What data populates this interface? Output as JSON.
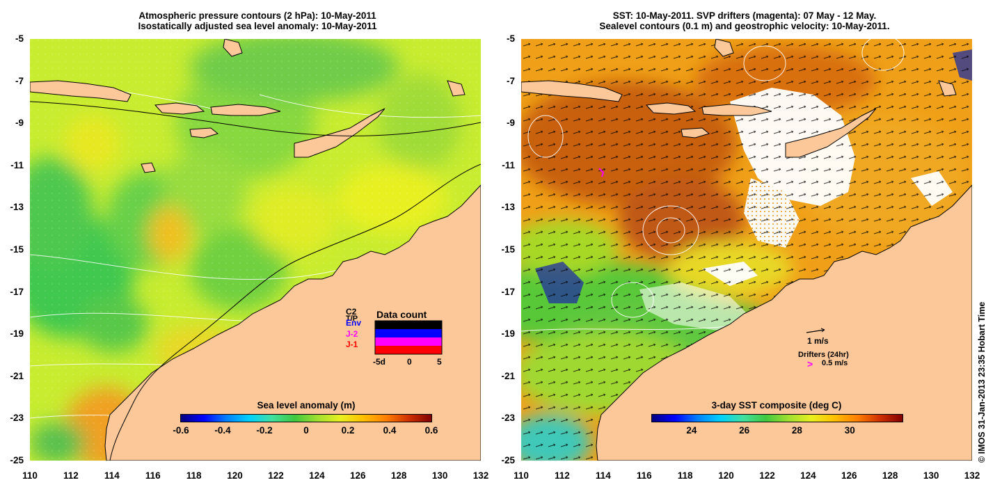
{
  "left_panel": {
    "title_line1": "Atmospheric pressure contours (2 hPa): 10-May-2011",
    "title_line2": "Isostatically adjusted sea level anomaly: 10-May-2011",
    "colorbar": {
      "label": "Sea level anomaly (m)",
      "ticks": [
        "-0.6",
        "-0.4",
        "-0.2",
        "0",
        "0.2",
        "0.4",
        "0.6"
      ],
      "range": [
        -0.6,
        0.6
      ],
      "colors": [
        "#00007f",
        "#0000ff",
        "#0080ff",
        "#00d0ff",
        "#40e0a0",
        "#40c840",
        "#a0e030",
        "#e8f020",
        "#ffc000",
        "#ff8000",
        "#d03000",
        "#800000"
      ]
    },
    "data_count": {
      "title": "Data count",
      "satellites": [
        {
          "name": "C2",
          "color": "#000000"
        },
        {
          "name": "T/P",
          "color": "#000000"
        },
        {
          "name": "Env",
          "color": "#0000ff"
        },
        {
          "name": "J-2",
          "color": "#ff00ff"
        },
        {
          "name": "J-1",
          "color": "#ff0000"
        }
      ],
      "xticks": [
        "-5d",
        "0",
        "5"
      ]
    }
  },
  "right_panel": {
    "title_line1": "SST: 10-May-2011. SVP drifters (magenta): 07 May - 12 May.",
    "title_line2": "Sealevel contours (0.1 m) and geostrophic velocity: 10-May-2011.",
    "colorbar": {
      "label": "3-day SST composite (deg C)",
      "ticks": [
        "24",
        "26",
        "28",
        "30"
      ],
      "range": [
        22.5,
        32
      ],
      "colors": [
        "#00007f",
        "#0000ff",
        "#0080ff",
        "#00d0ff",
        "#40e0a0",
        "#40c840",
        "#a0e030",
        "#e8f020",
        "#ffc000",
        "#ff8000",
        "#d03000",
        "#800000"
      ]
    },
    "velocity_legend": "1 m/s",
    "drifters_legend_title": "Drifters (24hr)",
    "drifters_legend_value": "0.5 m/s",
    "drifter_symbol": ">"
  },
  "axes": {
    "lat_ticks": [
      "-5",
      "-7",
      "-9",
      "-11",
      "-13",
      "-15",
      "-17",
      "-19",
      "-21",
      "-23",
      "-25"
    ],
    "lon_ticks": [
      "110",
      "112",
      "114",
      "116",
      "118",
      "120",
      "122",
      "124",
      "126",
      "128",
      "130",
      "132"
    ],
    "lat_range": [
      -25,
      -5
    ],
    "lon_range": [
      110,
      132
    ]
  },
  "colors": {
    "land": "#fcc89a",
    "cloud": "#ffffff",
    "coast": "#000000"
  },
  "credit": "© IMOS 31-Jan-2013 23:35 Hobart Time"
}
